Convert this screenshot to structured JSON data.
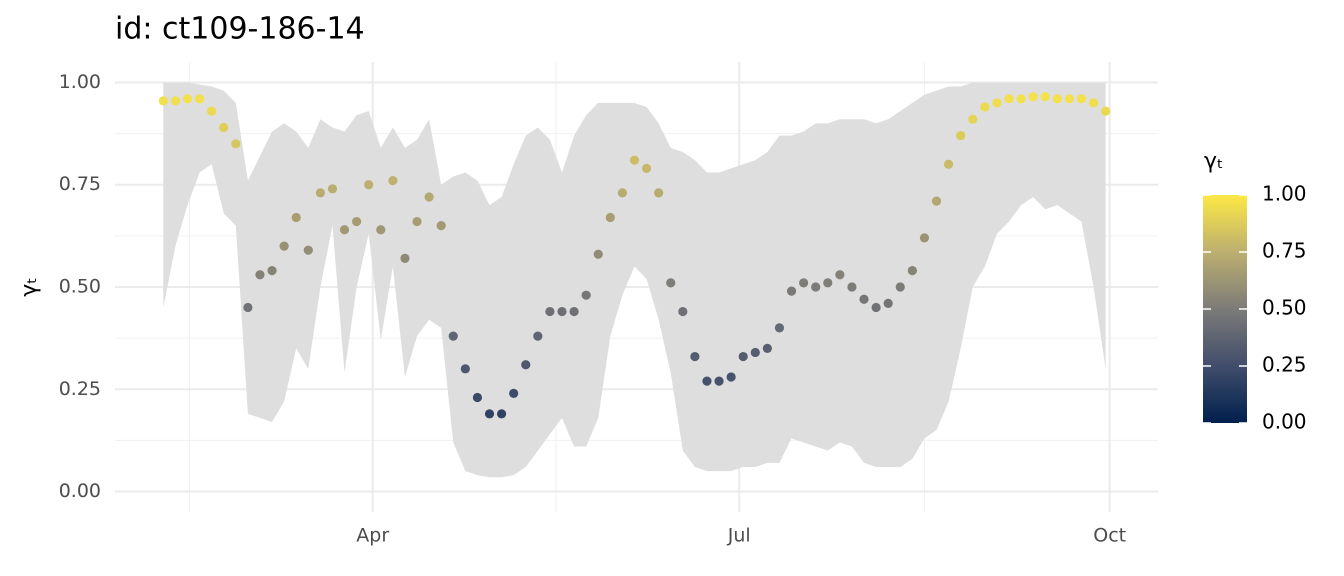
{
  "chart_data": {
    "type": "scatter",
    "title": "id: ct109-186-14",
    "ylabel": "γₜ",
    "x": [
      -52,
      -49,
      -46,
      -43,
      -40,
      -37,
      -34,
      -31,
      -28,
      -25,
      -22,
      -19,
      -16,
      -13,
      -10,
      -7,
      -4,
      -1,
      2,
      5,
      8,
      11,
      14,
      17,
      20,
      23,
      26,
      29,
      32,
      35,
      38,
      41,
      44,
      47,
      50,
      53,
      56,
      59,
      62,
      65,
      68,
      71,
      74,
      77,
      80,
      83,
      86,
      89,
      92,
      95,
      98,
      101,
      104,
      107,
      110,
      113,
      116,
      119,
      122,
      125,
      128,
      131,
      134,
      137,
      140,
      143,
      146,
      149,
      152,
      155,
      158,
      161,
      164,
      167,
      170,
      173,
      176,
      179,
      182
    ],
    "values": [
      0.955,
      0.955,
      0.96,
      0.96,
      0.93,
      0.89,
      0.85,
      0.45,
      0.53,
      0.54,
      0.6,
      0.67,
      0.59,
      0.73,
      0.74,
      0.64,
      0.66,
      0.75,
      0.64,
      0.76,
      0.57,
      0.66,
      0.72,
      0.65,
      0.38,
      0.3,
      0.23,
      0.19,
      0.19,
      0.24,
      0.31,
      0.38,
      0.44,
      0.44,
      0.44,
      0.48,
      0.58,
      0.67,
      0.73,
      0.81,
      0.79,
      0.73,
      0.51,
      0.44,
      0.33,
      0.27,
      0.27,
      0.28,
      0.33,
      0.34,
      0.35,
      0.4,
      0.49,
      0.51,
      0.5,
      0.51,
      0.53,
      0.5,
      0.47,
      0.45,
      0.46,
      0.5,
      0.54,
      0.62,
      0.71,
      0.8,
      0.87,
      0.91,
      0.94,
      0.95,
      0.96,
      0.96,
      0.965,
      0.965,
      0.96,
      0.96,
      0.96,
      0.95,
      0.93
    ],
    "ribbon": {
      "color": "#dedede",
      "upper": [
        1.0,
        1.0,
        1.0,
        0.995,
        0.99,
        0.98,
        0.95,
        0.76,
        0.82,
        0.88,
        0.9,
        0.88,
        0.84,
        0.91,
        0.89,
        0.88,
        0.92,
        0.93,
        0.84,
        0.89,
        0.84,
        0.86,
        0.91,
        0.75,
        0.77,
        0.78,
        0.76,
        0.7,
        0.72,
        0.8,
        0.87,
        0.89,
        0.86,
        0.78,
        0.87,
        0.92,
        0.95,
        0.95,
        0.95,
        0.95,
        0.94,
        0.9,
        0.84,
        0.83,
        0.81,
        0.78,
        0.78,
        0.79,
        0.8,
        0.81,
        0.83,
        0.87,
        0.87,
        0.88,
        0.9,
        0.9,
        0.91,
        0.91,
        0.91,
        0.9,
        0.91,
        0.93,
        0.95,
        0.97,
        0.98,
        0.99,
        0.99,
        1.0,
        1.0,
        1.0,
        1.0,
        1.0,
        1.0,
        1.0,
        1.0,
        1.0,
        1.0,
        1.0,
        1.0
      ],
      "lower": [
        0.45,
        0.6,
        0.7,
        0.78,
        0.8,
        0.68,
        0.65,
        0.19,
        0.18,
        0.17,
        0.22,
        0.35,
        0.3,
        0.5,
        0.65,
        0.29,
        0.5,
        0.63,
        0.37,
        0.55,
        0.28,
        0.38,
        0.42,
        0.4,
        0.12,
        0.05,
        0.04,
        0.035,
        0.035,
        0.04,
        0.06,
        0.1,
        0.14,
        0.18,
        0.11,
        0.11,
        0.18,
        0.38,
        0.48,
        0.55,
        0.52,
        0.42,
        0.29,
        0.1,
        0.06,
        0.05,
        0.05,
        0.05,
        0.06,
        0.06,
        0.07,
        0.07,
        0.13,
        0.12,
        0.11,
        0.1,
        0.12,
        0.11,
        0.07,
        0.06,
        0.06,
        0.06,
        0.08,
        0.13,
        0.15,
        0.22,
        0.35,
        0.5,
        0.55,
        0.63,
        0.66,
        0.7,
        0.72,
        0.69,
        0.7,
        0.68,
        0.66,
        0.5,
        0.3
      ]
    },
    "xlim": [
      -64,
      195
    ],
    "xticks": [
      {
        "value": 0,
        "label": "Apr"
      },
      {
        "value": 91,
        "label": "Jul"
      },
      {
        "value": 183,
        "label": "Oct"
      }
    ],
    "ylim": [
      -0.05,
      1.05
    ],
    "yticks": [
      {
        "value": 0,
        "label": "0.00"
      },
      {
        "value": 0.25,
        "label": "0.25"
      },
      {
        "value": 0.5,
        "label": "0.50"
      },
      {
        "value": 0.75,
        "label": "0.75"
      },
      {
        "value": 1,
        "label": "1.00"
      }
    ],
    "grid": true,
    "colorscale": {
      "title": "γₜ",
      "colors": [
        "#00204D",
        "#414D6B",
        "#7C7B78",
        "#BCAF6F",
        "#FDE945"
      ],
      "lim": [
        0,
        1
      ],
      "ticks": [
        {
          "value": 0,
          "label": "0.00"
        },
        {
          "value": 0.25,
          "label": "0.25"
        },
        {
          "value": 0.5,
          "label": "0.50"
        },
        {
          "value": 0.75,
          "label": "0.75"
        },
        {
          "value": 1,
          "label": "1.00"
        }
      ]
    }
  }
}
